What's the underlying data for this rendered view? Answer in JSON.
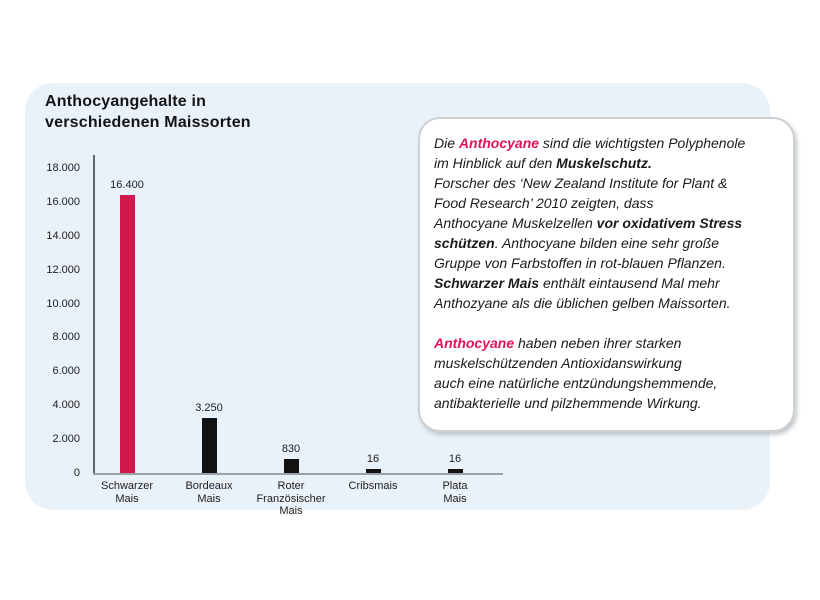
{
  "title": "Anthocyangehalte in\nverschiedenen Maissorten",
  "colors": {
    "panel_background": "#eaf2f9",
    "bar_highlight": "#d01a4e",
    "bar_default": "#121212",
    "accent_text": "#e3125f",
    "axis_line": "#5f646a",
    "baseline": "#9aa0a5",
    "text": "#1b1b1b"
  },
  "chart_data": {
    "type": "bar",
    "title": "Anthocyangehalte in verschiedenen Maissorten",
    "categories": [
      "Schwarzer Mais",
      "Bordeaux Mais",
      "Roter Französischer Mais",
      "Cribsmais",
      "Plata Mais"
    ],
    "category_display": [
      "Schwarzer\nMais",
      "Bordeaux\nMais",
      "Roter\nFranzösischer\nMais",
      "Cribsmais",
      "Plata\nMais"
    ],
    "values": [
      16400,
      3250,
      830,
      16,
      16
    ],
    "value_labels": [
      "16.400",
      "3.250",
      "830",
      "16",
      "16"
    ],
    "bar_colors": [
      "#d01a4e",
      "#121212",
      "#121212",
      "#121212",
      "#121212"
    ],
    "xlabel": "",
    "ylabel": "",
    "ylim": [
      0,
      18000
    ],
    "ytick_values": [
      18000,
      16000,
      14000,
      12000,
      10000,
      8000,
      6000,
      4000,
      2000,
      0
    ],
    "ytick_labels": [
      "18.000",
      "16.000",
      "14.000",
      "12.000",
      "10.000",
      "8.000",
      "6.000",
      "4.000",
      "2.000",
      "0"
    ],
    "grid": false,
    "legend": "none"
  },
  "infobox": {
    "accent_color": "#e3125f",
    "paragraphs": [
      [
        {
          "t": "Die "
        },
        {
          "t": "Anthocyane",
          "b": 1,
          "accent": 1
        },
        {
          "t": " sind die wichtigsten Polyphenole",
          "br": 1
        },
        {
          "t": "im Hinblick auf den "
        },
        {
          "t": "Muskelschutz.",
          "b": 1,
          "br": 1
        },
        {
          "t": "Forscher des ‘New Zealand Institute for Plant &",
          "br": 1
        },
        {
          "t": "Food Research’ 2010 zeigten, dass",
          "br": 1
        },
        {
          "t": "Anthocyane Muskelzellen "
        },
        {
          "t": "vor oxidativem Stress",
          "b": 1,
          "br": 1
        },
        {
          "t": "schützen",
          "b": 1
        },
        {
          "t": ".  Anthocyane bilden eine sehr große",
          "br": 1
        },
        {
          "t": "Gruppe von Farbstoffen in rot-blauen Pflanzen.",
          "br": 1
        },
        {
          "t": "Schwarzer Mais",
          "b": 1
        },
        {
          "t": "  enthält eintausend Mal mehr",
          "br": 1
        },
        {
          "t": "Anthozyane als die üblichen gelben Maissorten."
        }
      ],
      [
        {
          "t": "Anthocyane",
          "b": 1,
          "accent": 1
        },
        {
          "t": " haben neben ihrer starken",
          "br": 1
        },
        {
          "t": "muskelschützenden Antioxidanswirkung",
          "br": 1
        },
        {
          "t": "auch eine natürliche entzündungshemmende,",
          "br": 1
        },
        {
          "t": "antibakterielle und pilzhemmende Wirkung."
        }
      ]
    ]
  }
}
